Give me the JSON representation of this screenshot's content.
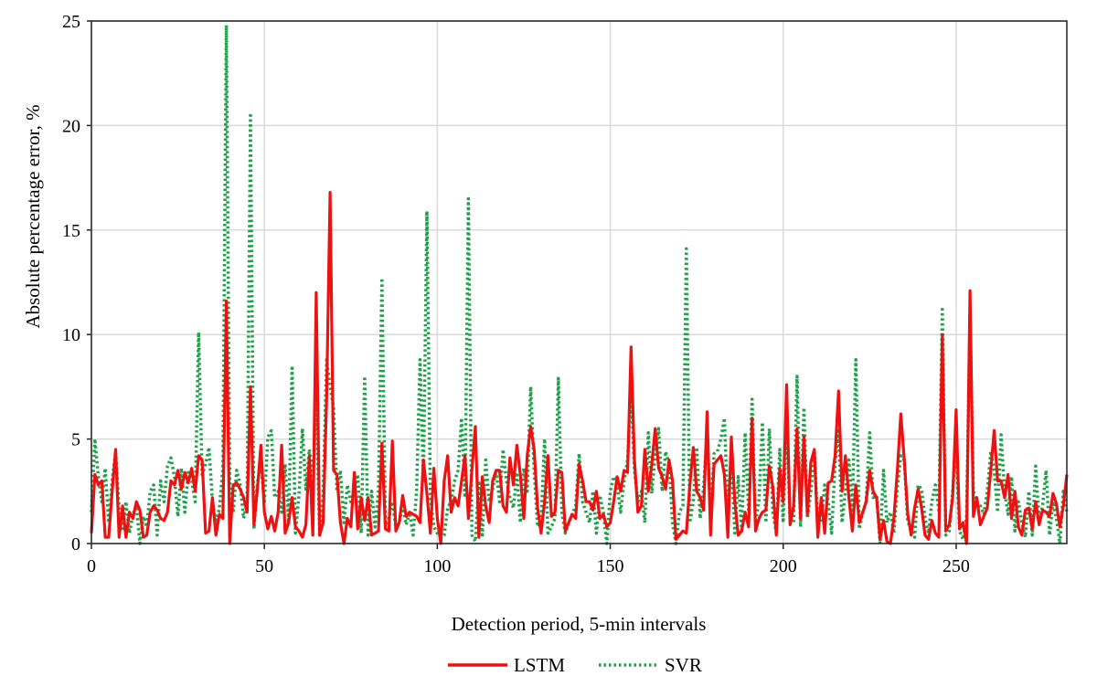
{
  "chart_data": {
    "type": "line",
    "title": "",
    "xlabel": "Detection period, 5-min intervals",
    "ylabel": "Absolute percentage error, %",
    "xlim": [
      0,
      282
    ],
    "ylim": [
      0,
      25
    ],
    "xticks": [
      "0",
      "50",
      "100",
      "150",
      "200",
      "250"
    ],
    "yticks": [
      "0",
      "5",
      "10",
      "15",
      "20",
      "25"
    ],
    "grid": true,
    "legend_position": "bottom-center",
    "colors": {
      "LSTM": "#ee1111",
      "SVR": "#1fa04a"
    },
    "series": [
      {
        "name": "LSTM",
        "style": "solid",
        "values": [
          0.5,
          3.3,
          2.8,
          3.0,
          0.3,
          0.3,
          2.5,
          4.5,
          0.3,
          1.8,
          0.3,
          1.5,
          1.2,
          2.0,
          1.6,
          0.3,
          0.4,
          1.5,
          1.8,
          1.6,
          1.2,
          1.1,
          1.5,
          3.0,
          2.8,
          3.5,
          2.6,
          3.4,
          2.9,
          3.6,
          2.5,
          4.2,
          4.0,
          0.5,
          0.6,
          2.2,
          0.4,
          1.4,
          1.2,
          11.6,
          0.0,
          2.8,
          2.9,
          2.6,
          2.2,
          1.5,
          7.5,
          0.9,
          2.6,
          4.7,
          1.5,
          0.7,
          1.3,
          0.6,
          1.5,
          4.7,
          0.5,
          1.0,
          2.2,
          0.8,
          0.6,
          0.3,
          0.9,
          4.2,
          0.4,
          12.0,
          0.4,
          1.0,
          7.0,
          16.8,
          3.5,
          3.3,
          1.0,
          0.0,
          1.2,
          0.8,
          3.4,
          0.7,
          2.2,
          1.1,
          2.2,
          0.4,
          0.5,
          0.6,
          4.8,
          0.7,
          0.6,
          4.9,
          0.6,
          1.0,
          2.3,
          1.3,
          1.5,
          1.4,
          1.3,
          1.0,
          4.0,
          2.4,
          0.5,
          3.6,
          1.2,
          0.0,
          3.0,
          4.2,
          1.5,
          2.2,
          1.8,
          3.0,
          4.2,
          1.2,
          3.5,
          5.6,
          0.3,
          3.2,
          1.8,
          1.0,
          3.0,
          3.5,
          3.5,
          1.8,
          1.5,
          4.1,
          2.8,
          4.7,
          3.3,
          1.2,
          4.2,
          5.6,
          4.5,
          1.7,
          0.5,
          2.0,
          4.2,
          1.3,
          1.5,
          3.5,
          3.4,
          0.6,
          1.0,
          1.4,
          1.2,
          3.8,
          3.0,
          2.0,
          2.0,
          1.6,
          2.5,
          1.2,
          1.4,
          0.8,
          1.0,
          2.0,
          3.2,
          2.5,
          3.5,
          3.4,
          9.4,
          4.0,
          1.5,
          1.8,
          4.5,
          2.5,
          3.8,
          5.5,
          3.6,
          3.2,
          2.6,
          4.0,
          3.0,
          0.2,
          0.4,
          0.6,
          0.5,
          2.8,
          4.6,
          2.5,
          2.2,
          1.6,
          6.3,
          0.4,
          3.8,
          4.0,
          4.2,
          3.3,
          0.3,
          5.1,
          2.0,
          0.4,
          0.6,
          1.5,
          0.8,
          6.0,
          0.6,
          1.2,
          1.5,
          1.6,
          3.7,
          2.7,
          0.4,
          3.6,
          2.0,
          7.6,
          0.9,
          1.8,
          5.5,
          1.2,
          5.1,
          1.4,
          3.9,
          4.5,
          0.3,
          2.2,
          0.5,
          2.9,
          3.0,
          4.2,
          7.3,
          2.5,
          4.2,
          2.2,
          0.6,
          2.8,
          1.0,
          1.5,
          2.0,
          3.5,
          2.5,
          2.2,
          0.2,
          1.1,
          0.1,
          0.0,
          1.2,
          3.5,
          6.2,
          4.0,
          1.4,
          0.4,
          1.7,
          2.6,
          1.7,
          0.4,
          0.2,
          1.1,
          0.5,
          0.3,
          10.0,
          0.6,
          0.9,
          2.2,
          6.4,
          0.7,
          1.0,
          0.0,
          12.1,
          1.3,
          2.2,
          0.9,
          1.3,
          1.7,
          3.5,
          5.4,
          3.0,
          3.0,
          2.2,
          3.3,
          1.2,
          2.5,
          0.8,
          0.4,
          1.6,
          1.7,
          0.7,
          2.0,
          0.9,
          1.6,
          1.5,
          1.3,
          2.4,
          1.9,
          0.8,
          1.8,
          3.3
        ]
      },
      {
        "name": "SVR",
        "style": "dotted",
        "values": [
          1.5,
          5.0,
          3.2,
          2.0,
          3.6,
          1.0,
          3.0,
          4.4,
          1.6,
          0.6,
          2.0,
          0.5,
          1.4,
          1.8,
          0.0,
          1.3,
          0.8,
          2.5,
          2.8,
          0.4,
          3.0,
          2.0,
          3.7,
          4.1,
          3.2,
          1.3,
          3.6,
          1.5,
          3.4,
          3.0,
          2.0,
          10.1,
          3.3,
          3.8,
          4.6,
          2.0,
          1.0,
          1.7,
          3.6,
          24.8,
          3.0,
          1.5,
          3.5,
          2.8,
          1.2,
          2.0,
          20.6,
          0.7,
          2.9,
          3.8,
          2.0,
          5.1,
          5.4,
          2.2,
          2.5,
          1.5,
          3.8,
          1.0,
          8.5,
          0.5,
          2.3,
          5.5,
          2.6,
          4.5,
          3.0,
          7.0,
          0.4,
          2.4,
          8.8,
          7.5,
          6.5,
          2.5,
          3.5,
          1.0,
          2.8,
          2.0,
          2.5,
          3.3,
          0.5,
          8.0,
          0.4,
          2.5,
          0.8,
          2.5,
          12.7,
          0.9,
          1.2,
          2.0,
          0.8,
          1.0,
          1.8,
          0.9,
          1.5,
          0.4,
          2.5,
          8.8,
          3.0,
          15.9,
          2.2,
          0.8,
          0.5,
          0.3,
          0.4,
          1.7,
          2.0,
          3.0,
          3.5,
          6.0,
          2.2,
          16.5,
          0.4,
          0.1,
          3.0,
          0.3,
          4.0,
          2.0,
          2.6,
          3.5,
          2.0,
          4.5,
          3.0,
          2.2,
          1.7,
          3.4,
          1.0,
          3.6,
          2.5,
          7.5,
          3.5,
          0.8,
          1.0,
          5.0,
          0.5,
          0.8,
          1.2,
          7.9,
          1.5,
          0.5,
          1.0,
          1.4,
          1.8,
          4.3,
          2.0,
          1.5,
          1.0,
          2.5,
          0.5,
          2.3,
          1.5,
          0.0,
          2.5,
          3.2,
          2.8,
          1.5,
          3.0,
          4.0,
          7.5,
          3.5,
          2.0,
          2.5,
          1.0,
          5.3,
          2.4,
          4.3,
          5.5,
          2.5,
          4.4,
          3.8,
          1.0,
          0.0,
          1.5,
          1.8,
          14.1,
          1.0,
          2.0,
          4.6,
          1.2,
          2.7,
          5.3,
          1.3,
          4.3,
          4.4,
          5.0,
          6.0,
          1.5,
          4.2,
          0.5,
          3.2,
          0.6,
          5.3,
          1.5,
          6.9,
          1.0,
          2.1,
          5.8,
          1.0,
          5.5,
          1.5,
          0.5,
          4.5,
          1.0,
          6.0,
          1.0,
          1.0,
          8.0,
          0.8,
          6.5,
          1.2,
          2.5,
          4.5,
          1.0,
          1.0,
          2.8,
          2.0,
          0.5,
          3.8,
          5.5,
          1.0,
          2.5,
          4.0,
          1.6,
          8.8,
          0.7,
          1.5,
          2.0,
          5.3,
          2.2,
          2.3,
          0.0,
          3.5,
          1.0,
          1.5,
          0.5,
          2.7,
          4.2,
          4.0,
          1.0,
          0.8,
          0.3,
          2.8,
          2.6,
          1.2,
          0.5,
          2.0,
          2.8,
          1.6,
          11.2,
          0.4,
          0.6,
          2.5,
          4.5,
          0.6,
          0.2,
          1.3,
          11.0,
          2.5,
          2.0,
          1.8,
          1.4,
          2.5,
          4.4,
          3.5,
          1.5,
          5.2,
          2.5,
          1.4,
          3.2,
          0.6,
          2.0,
          1.0,
          0.3,
          2.5,
          0.4,
          3.7,
          1.0,
          1.8,
          3.5,
          0.4,
          2.0,
          1.2,
          0.0,
          2.5,
          1.5
        ]
      }
    ]
  }
}
